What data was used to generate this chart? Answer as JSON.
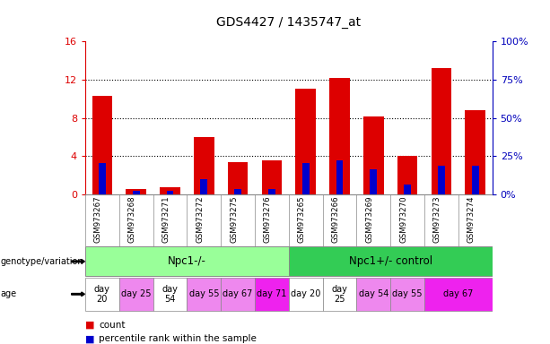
{
  "title": "GDS4427 / 1435747_at",
  "samples": [
    "GSM973267",
    "GSM973268",
    "GSM973271",
    "GSM973272",
    "GSM973275",
    "GSM973276",
    "GSM973265",
    "GSM973266",
    "GSM973269",
    "GSM973270",
    "GSM973273",
    "GSM973274"
  ],
  "counts": [
    10.3,
    0.6,
    0.7,
    6.0,
    3.4,
    3.6,
    11.0,
    12.2,
    8.1,
    4.0,
    13.2,
    8.8
  ],
  "percentile_ranks": [
    3.3,
    0.4,
    0.4,
    1.6,
    0.6,
    0.6,
    3.3,
    3.6,
    2.6,
    1.0,
    3.0,
    3.0
  ],
  "bar_color": "#dd0000",
  "perc_color": "#0000cc",
  "ylim_left": [
    0,
    16
  ],
  "ylim_right": [
    0,
    100
  ],
  "yticks_left": [
    0,
    4,
    8,
    12,
    16
  ],
  "yticks_right": [
    0,
    25,
    50,
    75,
    100
  ],
  "ytick_labels_right": [
    "0%",
    "25%",
    "50%",
    "75%",
    "100%"
  ],
  "genotype_groups": [
    {
      "label": "Npc1-/-",
      "start": 0,
      "end": 6,
      "color": "#99ff99"
    },
    {
      "label": "Npc1+/- control",
      "start": 6,
      "end": 12,
      "color": "#33cc55"
    }
  ],
  "age_spans": [
    {
      "label": "day\n20",
      "start": 0,
      "end": 1,
      "color": "#ffffff"
    },
    {
      "label": "day 25",
      "start": 1,
      "end": 2,
      "color": "#ee88ee"
    },
    {
      "label": "day\n54",
      "start": 2,
      "end": 3,
      "color": "#ffffff"
    },
    {
      "label": "day 55",
      "start": 3,
      "end": 4,
      "color": "#ee88ee"
    },
    {
      "label": "day 67",
      "start": 4,
      "end": 5,
      "color": "#ee88ee"
    },
    {
      "label": "day 71",
      "start": 5,
      "end": 6,
      "color": "#ee22ee"
    },
    {
      "label": "day 20",
      "start": 6,
      "end": 7,
      "color": "#ffffff"
    },
    {
      "label": "day\n25",
      "start": 7,
      "end": 8,
      "color": "#ffffff"
    },
    {
      "label": "day 54",
      "start": 8,
      "end": 9,
      "color": "#ee88ee"
    },
    {
      "label": "day 55",
      "start": 9,
      "end": 10,
      "color": "#ee88ee"
    },
    {
      "label": "day 67",
      "start": 10,
      "end": 12,
      "color": "#ee22ee"
    }
  ],
  "legend_count_color": "#dd0000",
  "legend_perc_color": "#0000cc",
  "title_fontsize": 10,
  "label_color_left": "#dd0000",
  "label_color_right": "#0000bb",
  "bg_color": "#ffffff",
  "sample_bg": "#cccccc",
  "grid_color": "#888888"
}
